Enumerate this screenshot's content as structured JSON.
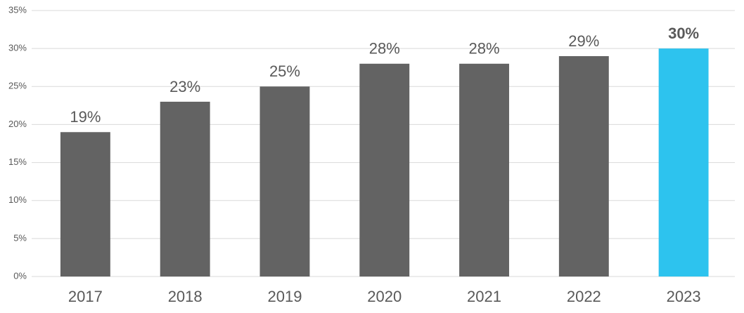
{
  "chart_data": {
    "type": "bar",
    "categories": [
      "2017",
      "2018",
      "2019",
      "2020",
      "2021",
      "2022",
      "2023"
    ],
    "values": [
      19,
      23,
      25,
      28,
      28,
      29,
      30
    ],
    "value_labels": [
      "19%",
      "23%",
      "25%",
      "28%",
      "28%",
      "29%",
      "30%"
    ],
    "value_label_bold": [
      false,
      false,
      false,
      false,
      false,
      false,
      true
    ],
    "colors": [
      "#636363",
      "#636363",
      "#636363",
      "#636363",
      "#636363",
      "#636363",
      "#2dc3ee"
    ],
    "ylim": [
      0,
      35
    ],
    "yticks": [
      {
        "value": 0,
        "label": "0%"
      },
      {
        "value": 5,
        "label": "5%"
      },
      {
        "value": 10,
        "label": "10%"
      },
      {
        "value": 15,
        "label": "15%"
      },
      {
        "value": 20,
        "label": "20%"
      },
      {
        "value": 25,
        "label": "25%"
      },
      {
        "value": 30,
        "label": "30%"
      },
      {
        "value": 35,
        "label": "35%"
      }
    ],
    "grid": true
  }
}
